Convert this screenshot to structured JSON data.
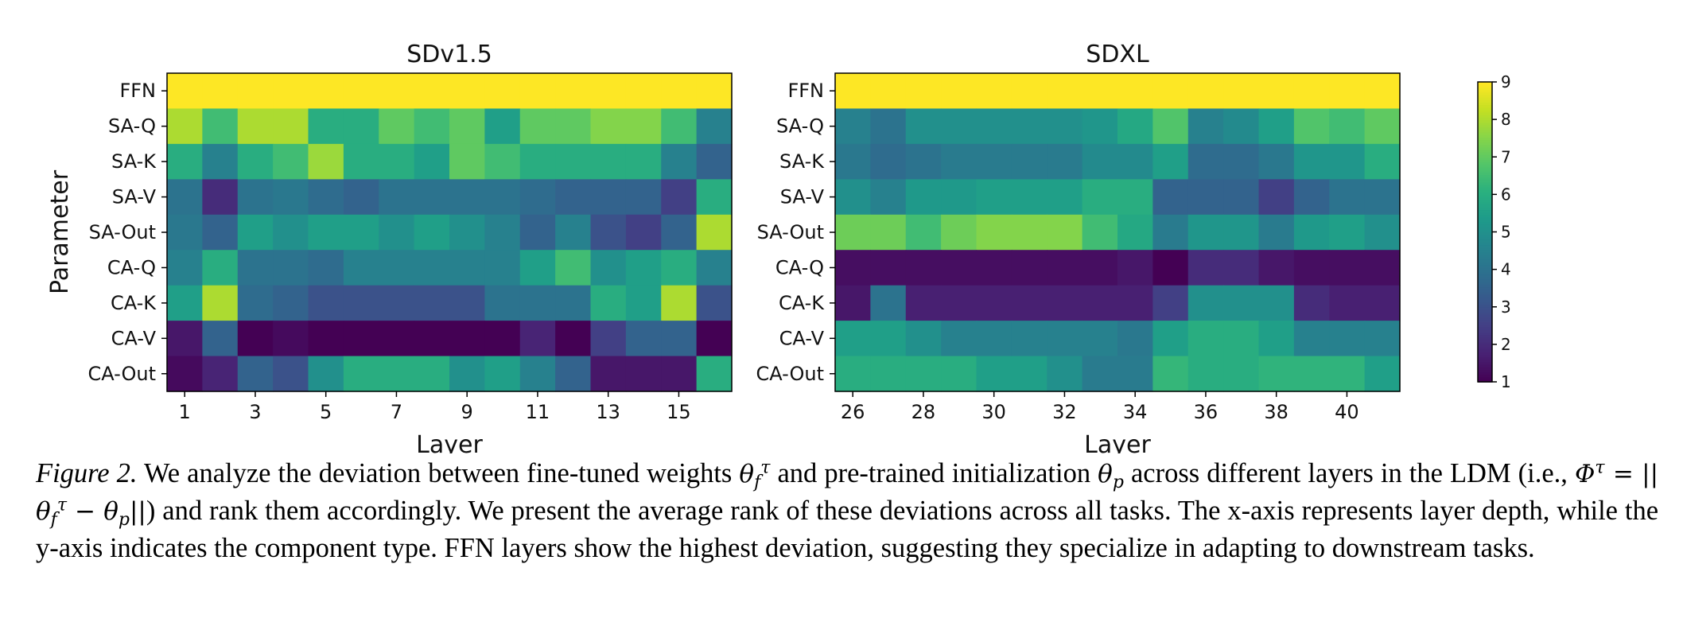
{
  "chart_data": [
    {
      "type": "heatmap",
      "title": "SDv1.5",
      "xlabel": "Layer",
      "ylabel": "Parameter",
      "rows": [
        "FFN",
        "SA-Q",
        "SA-K",
        "SA-V",
        "SA-Out",
        "CA-Q",
        "CA-K",
        "CA-V",
        "CA-Out"
      ],
      "x": [
        1,
        2,
        3,
        4,
        5,
        6,
        7,
        8,
        9,
        10,
        11,
        12,
        13,
        14,
        15,
        16
      ],
      "xticks": [
        "1",
        "3",
        "5",
        "7",
        "9",
        "11",
        "13",
        "15"
      ],
      "values": [
        [
          9,
          9,
          9,
          9,
          9,
          9,
          9,
          9,
          9,
          9,
          9,
          9,
          9,
          9,
          9,
          9
        ],
        [
          8,
          6.5,
          8,
          8,
          6,
          6,
          7,
          6.5,
          7,
          5.5,
          7,
          7,
          7.5,
          7.5,
          6.5,
          4.5
        ],
        [
          6,
          4.5,
          6,
          6.5,
          7.8,
          6,
          6,
          5.5,
          7,
          6.5,
          6,
          6,
          6,
          6,
          4.5,
          3.5
        ],
        [
          4,
          2,
          4,
          4.2,
          3.8,
          3.5,
          4,
          4,
          4,
          4,
          3.8,
          3.5,
          3.5,
          3.5,
          2.5,
          6
        ],
        [
          4.2,
          3.5,
          5.5,
          5,
          5.5,
          5.5,
          5,
          5.5,
          5,
          4.5,
          3.5,
          4.5,
          3,
          2.5,
          3.5,
          8
        ],
        [
          4.5,
          6,
          4,
          4,
          3.8,
          4.5,
          4.5,
          4.5,
          4.5,
          4.5,
          5.5,
          6.5,
          5,
          5.5,
          6,
          4.5
        ],
        [
          5.5,
          8,
          3.8,
          3.5,
          3,
          3,
          3,
          3,
          3,
          4,
          4,
          4,
          6,
          5.5,
          8,
          3
        ],
        [
          1.5,
          3.5,
          1,
          1.2,
          1,
          1,
          1,
          1,
          1,
          1,
          1.8,
          1,
          2.5,
          3.5,
          3.5,
          1
        ],
        [
          1.2,
          1.8,
          3.5,
          3,
          5,
          6,
          6,
          6,
          5,
          5.5,
          4.5,
          3.5,
          1.5,
          1.5,
          1.5,
          6
        ]
      ],
      "zlim": [
        1,
        9
      ]
    },
    {
      "type": "heatmap",
      "title": "SDXL",
      "xlabel": "Layer",
      "ylabel": "",
      "rows": [
        "FFN",
        "SA-Q",
        "SA-K",
        "SA-V",
        "SA-Out",
        "CA-Q",
        "CA-K",
        "CA-V",
        "CA-Out"
      ],
      "x": [
        26,
        27,
        28,
        29,
        30,
        31,
        32,
        33,
        34,
        35,
        36,
        37,
        38,
        39,
        40,
        41
      ],
      "xticks": [
        "26",
        "28",
        "30",
        "32",
        "34",
        "36",
        "38",
        "40"
      ],
      "values": [
        [
          9,
          9,
          9,
          9,
          9,
          9,
          9,
          9,
          9,
          9,
          9,
          9,
          9,
          9,
          9,
          9
        ],
        [
          4.5,
          4,
          5,
          5,
          5,
          5,
          5,
          5.2,
          5.8,
          6.8,
          4.5,
          4.8,
          5.5,
          6.8,
          6.5,
          7
        ],
        [
          4.2,
          3.8,
          4,
          4.3,
          4.3,
          4.3,
          4.3,
          4.8,
          4.8,
          5.5,
          3.8,
          3.8,
          4.2,
          5.2,
          5.2,
          6
        ],
        [
          5,
          4.5,
          5.3,
          5.3,
          5.5,
          5.5,
          5.5,
          6,
          6,
          3.5,
          3.5,
          3.5,
          2.5,
          3.5,
          4,
          4
        ],
        [
          7.2,
          7.2,
          6.5,
          7.2,
          7.5,
          7.5,
          7.5,
          6.5,
          5.8,
          4.3,
          5.2,
          5.2,
          4.3,
          5.3,
          5.5,
          5
        ],
        [
          1.3,
          1.3,
          1.3,
          1.3,
          1.3,
          1.3,
          1.3,
          1.3,
          1.5,
          1,
          2,
          2,
          1.5,
          1.3,
          1.3,
          1.3
        ],
        [
          1.5,
          4,
          1.7,
          1.7,
          1.7,
          1.7,
          1.7,
          1.7,
          1.7,
          2.5,
          5,
          5,
          5,
          2,
          1.7,
          1.7
        ],
        [
          5.5,
          5.5,
          5,
          4.5,
          4.5,
          4.5,
          4.5,
          4.5,
          4.2,
          5.5,
          6,
          6,
          5.5,
          4.5,
          4.5,
          4.5
        ],
        [
          6,
          6,
          6,
          6,
          5.5,
          5.5,
          5,
          4.3,
          4.3,
          6.3,
          6,
          6,
          6.2,
          6.2,
          6.2,
          5.5
        ]
      ],
      "zlim": [
        1,
        9
      ]
    }
  ],
  "colorbar": {
    "ticks": [
      "1",
      "2",
      "3",
      "4",
      "5",
      "6",
      "7",
      "8",
      "9"
    ],
    "colormap": "viridis"
  },
  "caption": {
    "label": "Figure 2.",
    "p1": " We analyze the deviation between fine-tuned weights ",
    "theta": "θ",
    "f": "f",
    "tau": "τ",
    "p2": " and pre-trained initialization ",
    "p": "p",
    "p3": " across different layers in the LDM (i.e., ",
    "Phi": "Φ",
    "eq": " = ||",
    "minus": " − ",
    "close": "||",
    "p4": ") and rank them accordingly. We present the average rank of these deviations across all tasks. The x-axis represents layer depth, while the y-axis indicates the component type. FFN layers show the highest deviation, suggesting they specialize in adapting to downstream tasks."
  }
}
